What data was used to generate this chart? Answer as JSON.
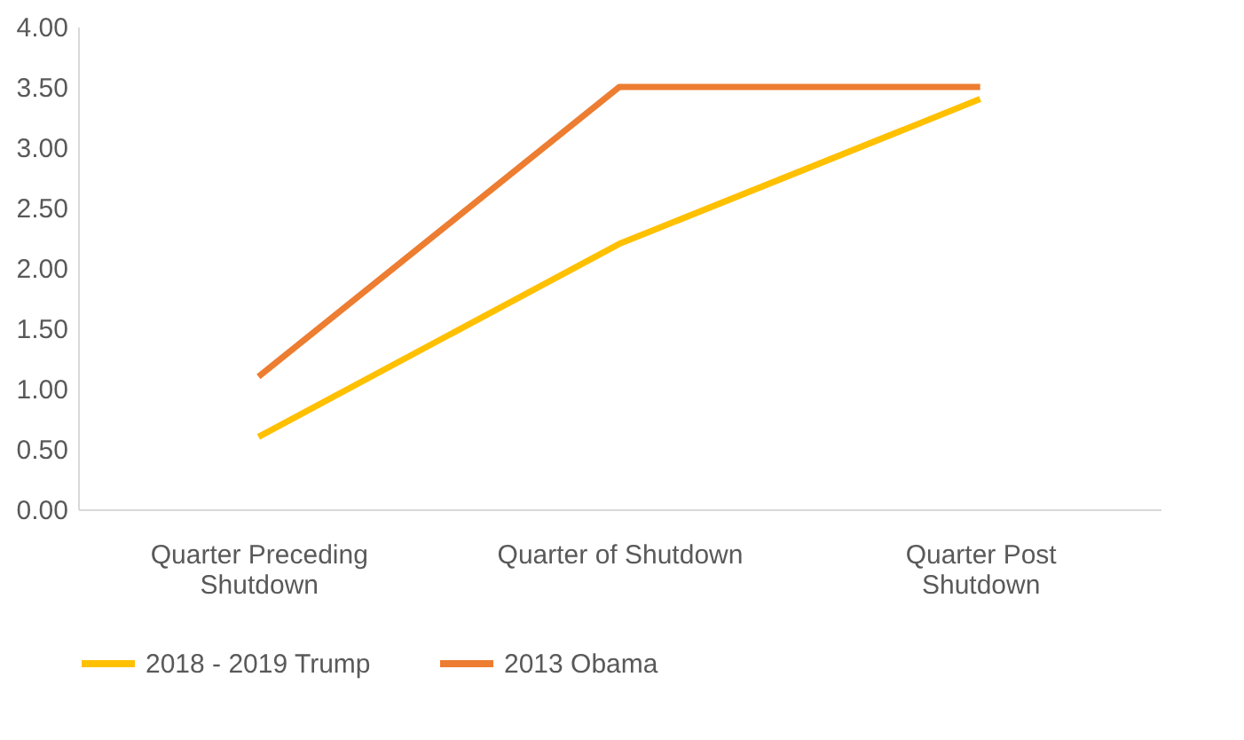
{
  "chart_data": {
    "type": "line",
    "categories": [
      "Quarter Preceding Shutdown",
      "Quarter of Shutdown",
      "Quarter Post Shutdown"
    ],
    "series": [
      {
        "name": "2018 - 2019 Trump",
        "color": "#ffc000",
        "values": [
          0.6,
          2.2,
          3.4
        ]
      },
      {
        "name": "2013 Obama",
        "color": "#ed7d31",
        "values": [
          1.1,
          3.5,
          3.5
        ]
      }
    ],
    "ylim": [
      0,
      4
    ],
    "yticks": [
      {
        "value": 0,
        "label": "0.00"
      },
      {
        "value": 0.5,
        "label": "0.50"
      },
      {
        "value": 1,
        "label": "1.00"
      },
      {
        "value": 1.5,
        "label": "1.50"
      },
      {
        "value": 2,
        "label": "2.00"
      },
      {
        "value": 2.5,
        "label": "2.50"
      },
      {
        "value": 3,
        "label": "3.00"
      },
      {
        "value": 3.5,
        "label": "3.50"
      },
      {
        "value": 4,
        "label": "4.00"
      }
    ],
    "grid": false,
    "legend": "bottom",
    "marker": "none",
    "line_style": "solid"
  }
}
